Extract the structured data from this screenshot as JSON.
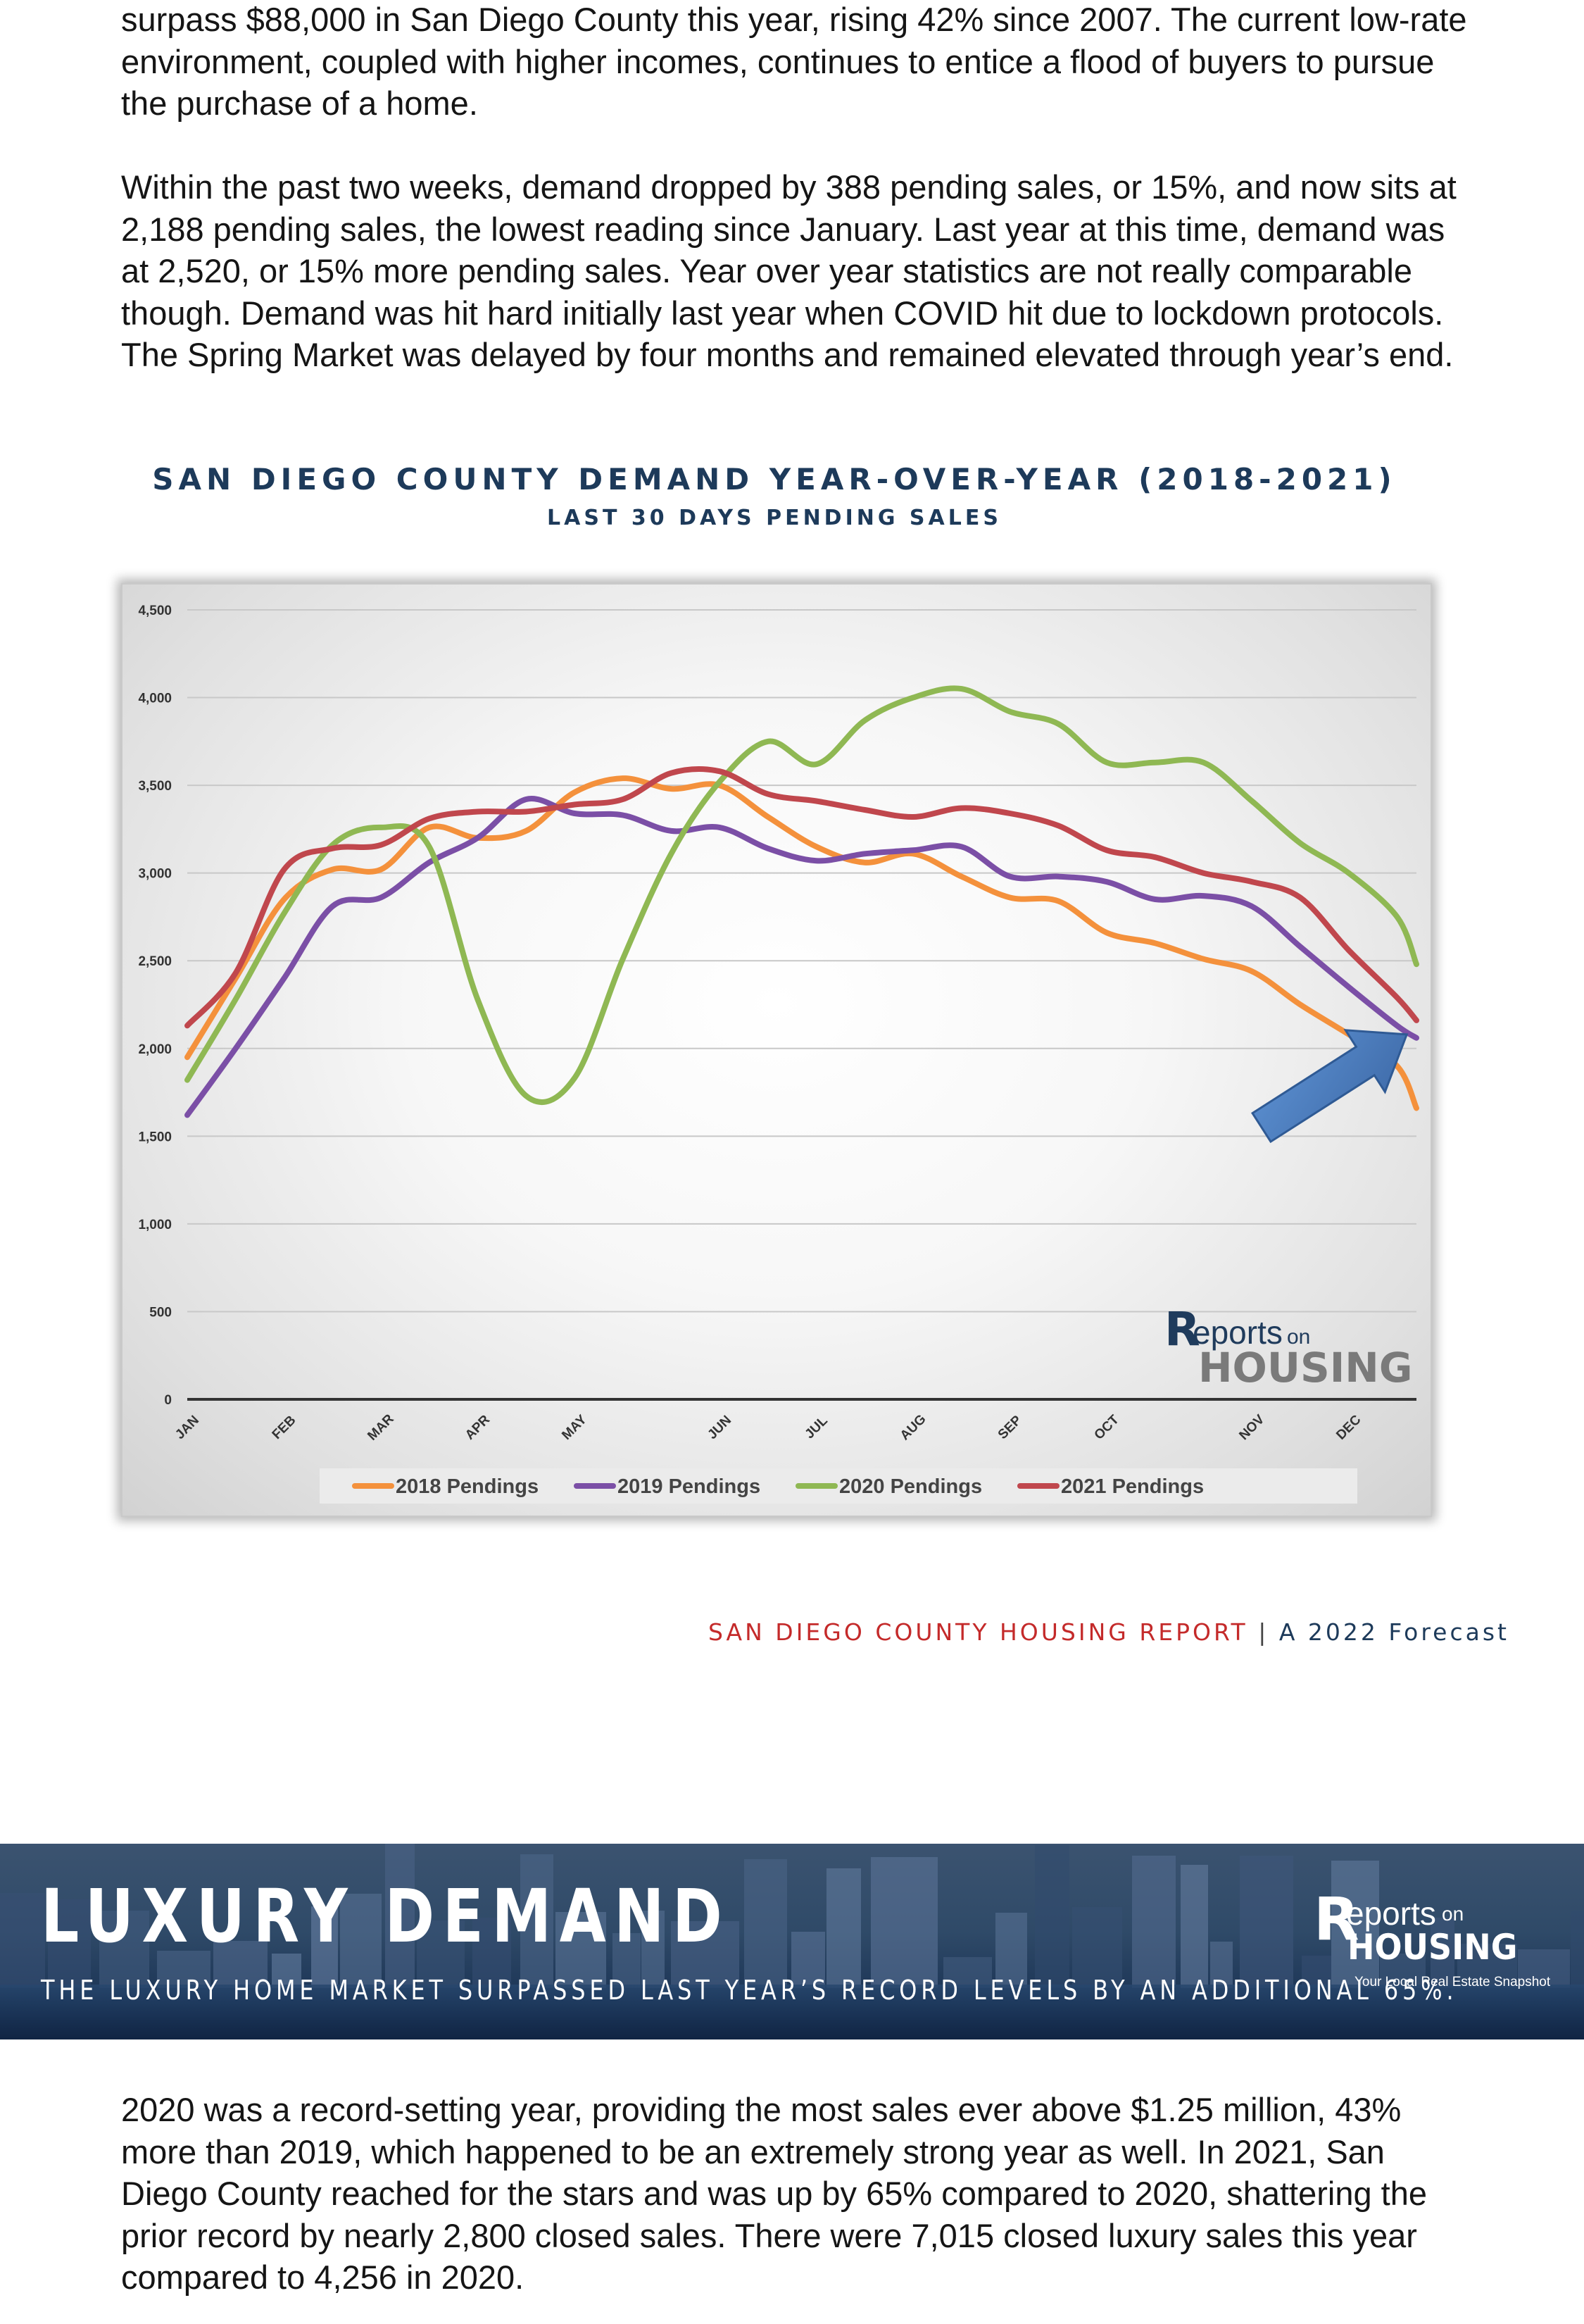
{
  "paragraphs": {
    "p1": "surpass $88,000 in San Diego County this year, rising 42% since 2007. The current low-rate environment, coupled with higher incomes, continues to entice a flood of buyers to pursue the purchase of a home.",
    "p2": "Within the past two weeks, demand dropped by 388 pending sales, or 15%, and now sits at 2,188 pending sales, the lowest reading since January. Last year at this time, demand was at 2,520, or 15% more pending sales. Year over year statistics are not really comparable though. Demand was hit hard initially last year when COVID hit due to lockdown protocols. The Spring Market was delayed by four months and remained elevated through year’s end.",
    "p3": "2020 was a record-setting year, providing the most sales ever above $1.25 million, 43% more than 2019, which happened to be an extremely strong year as well. In 2021, San Diego County reached for the stars and was up by 65% compared to 2020, shattering the prior record by nearly 2,800 closed sales. There were 7,015 closed luxury sales this year compared to 4,256 in 2020."
  },
  "chart_data": {
    "type": "line",
    "title": "SAN DIEGO COUNTY DEMAND YEAR-OVER-YEAR (2018-2021)",
    "subtitle": "LAST 30 DAYS PENDING SALES",
    "x_tick_labels": [
      "JAN",
      "FEB",
      "MAR",
      "APR",
      "MAY",
      "JUN",
      "JUL",
      "AUG",
      "SEP",
      "OCT",
      "NOV",
      "DEC"
    ],
    "y_tick_labels": [
      "0",
      "500",
      "1,000",
      "1,500",
      "2,000",
      "2,500",
      "3,000",
      "3,500",
      "4,000",
      "4,500"
    ],
    "ylim": [
      0,
      4500
    ],
    "y_ticks": [
      0,
      500,
      1000,
      1500,
      2000,
      2500,
      3000,
      3500,
      4000,
      4500
    ],
    "x_range": [
      0,
      12.7
    ],
    "grid": true,
    "legend_position": "bottom",
    "series": [
      {
        "name": "2018 Pendings",
        "color": "#f4913c",
        "x": [
          0,
          0.5,
          1,
          1.5,
          2,
          2.5,
          3,
          3.5,
          4,
          4.5,
          5,
          5.5,
          6,
          6.5,
          7,
          7.5,
          8,
          8.5,
          9,
          9.5,
          10,
          10.5,
          11,
          11.5,
          12,
          12.5,
          12.7
        ],
        "values": [
          1950,
          2400,
          2850,
          3020,
          3020,
          3260,
          3200,
          3240,
          3460,
          3540,
          3480,
          3500,
          3320,
          3150,
          3060,
          3110,
          2980,
          2860,
          2840,
          2660,
          2600,
          2510,
          2440,
          2250,
          2080,
          1900,
          1660
        ]
      },
      {
        "name": "2019 Pendings",
        "color": "#7b4fa6",
        "x": [
          0,
          0.5,
          1,
          1.5,
          2,
          2.5,
          3,
          3.5,
          4,
          4.5,
          5,
          5.5,
          6,
          6.5,
          7,
          7.5,
          8,
          8.5,
          9,
          9.5,
          10,
          10.5,
          11,
          11.5,
          12,
          12.5,
          12.7
        ],
        "values": [
          1620,
          2000,
          2400,
          2810,
          2860,
          3060,
          3200,
          3420,
          3340,
          3330,
          3240,
          3260,
          3140,
          3070,
          3110,
          3130,
          3150,
          2980,
          2980,
          2950,
          2850,
          2870,
          2810,
          2580,
          2350,
          2130,
          2060
        ]
      },
      {
        "name": "2020 Pendings",
        "color": "#8fb853",
        "x": [
          0,
          0.5,
          1,
          1.5,
          2,
          2.5,
          3,
          3.5,
          4,
          4.5,
          5,
          5.5,
          6,
          6.5,
          7,
          7.5,
          8,
          8.5,
          9,
          9.5,
          10,
          10.5,
          11,
          11.5,
          12,
          12.5,
          12.7
        ],
        "values": [
          1820,
          2280,
          2770,
          3160,
          3260,
          3150,
          2280,
          1730,
          1830,
          2510,
          3110,
          3520,
          3750,
          3620,
          3870,
          4000,
          4050,
          3920,
          3850,
          3630,
          3630,
          3630,
          3410,
          3170,
          3000,
          2750,
          2480
        ]
      },
      {
        "name": "2021 Pendings",
        "color": "#c0474d",
        "x": [
          0,
          0.5,
          1,
          1.5,
          2,
          2.5,
          3,
          3.5,
          4,
          4.5,
          5,
          5.5,
          6,
          6.5,
          7,
          7.5,
          8,
          8.5,
          9,
          9.5,
          10,
          10.5,
          11,
          11.5,
          12,
          12.5,
          12.7
        ],
        "values": [
          2130,
          2430,
          3020,
          3140,
          3160,
          3310,
          3350,
          3350,
          3390,
          3420,
          3570,
          3580,
          3450,
          3410,
          3360,
          3320,
          3370,
          3340,
          3270,
          3130,
          3090,
          3000,
          2950,
          2860,
          2560,
          2290,
          2160
        ]
      }
    ],
    "annotations": [
      {
        "type": "arrow",
        "color": "#4f7fc0",
        "from": [
          11.1,
          1550
        ],
        "to": [
          12.6,
          2080
        ]
      }
    ]
  },
  "chart_logo": {
    "part1": "eports",
    "part2": "on",
    "part3": "HOUSING"
  },
  "footer": {
    "report": "SAN DIEGO COUNTY HOUSING REPORT",
    "separator": " | ",
    "forecast": "A 2022 Forecast"
  },
  "banner": {
    "title": "LUXURY DEMAND",
    "subtitle": "THE LUXURY HOME MARKET SURPASSED LAST YEAR’S RECORD LEVELS BY AN ADDITIONAL 65%.",
    "logo_part1": "eports",
    "logo_part2": "on",
    "logo_part3": "HOUSING",
    "logo_tagline": "Your Local Real Estate Snapshot"
  }
}
